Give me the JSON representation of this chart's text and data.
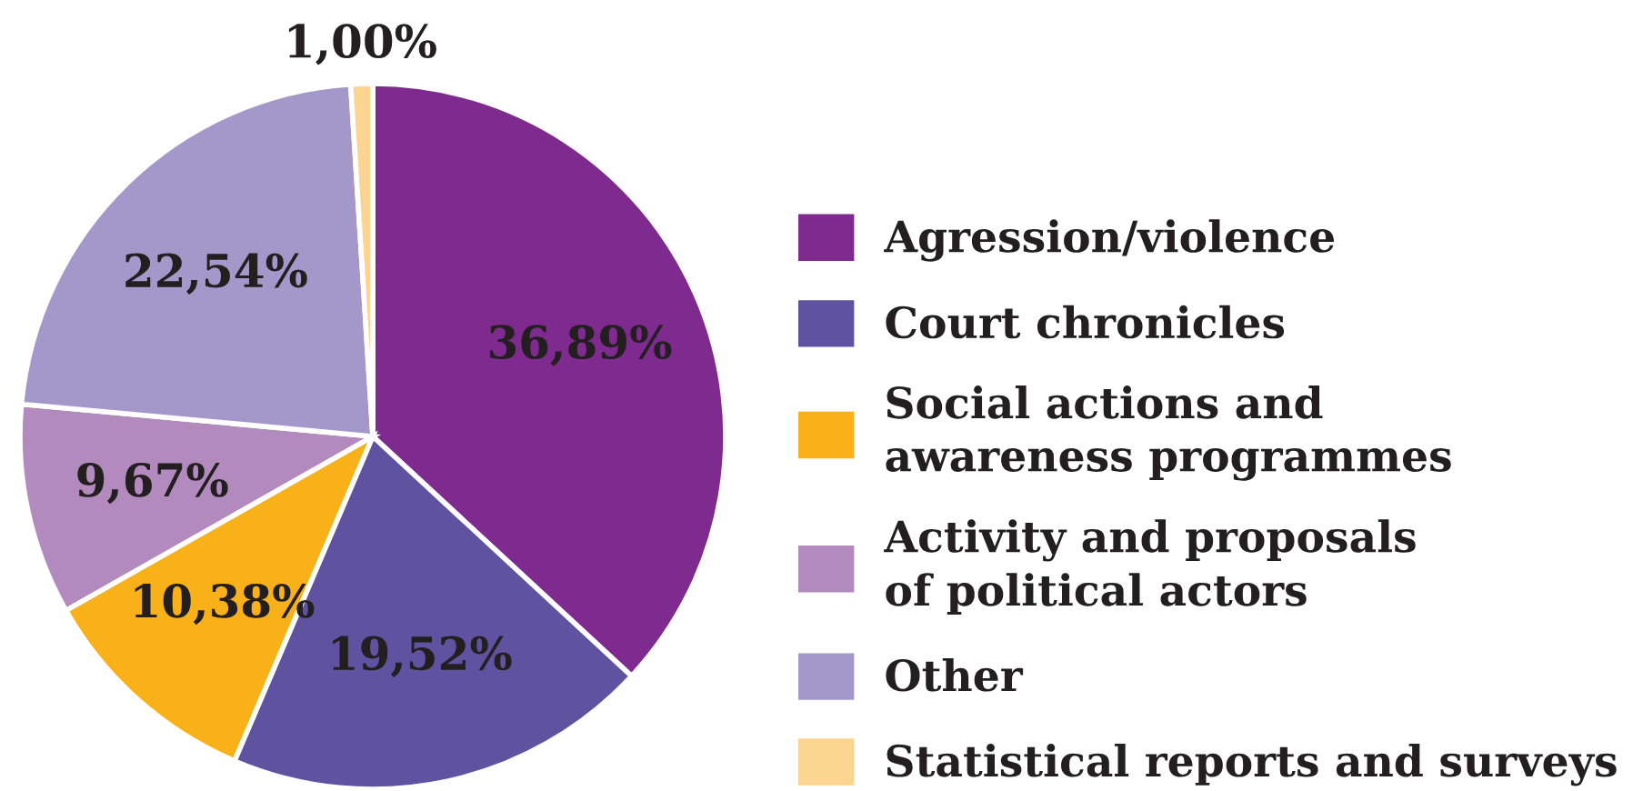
{
  "chart_data": {
    "type": "pie",
    "categories": [
      "Agression/violence",
      "Court chronicles",
      "Social actions and\nawareness programmes",
      "Activity and proposals\nof political actors",
      "Other",
      "Statistical reports and surveys"
    ],
    "values": [
      36.89,
      19.52,
      10.38,
      9.67,
      22.54,
      1.0
    ],
    "value_labels": [
      "36,89%",
      "19,52%",
      "10,38%",
      "9,67%",
      "22,54%",
      "1,00%"
    ],
    "colors": [
      "#7f2a8e",
      "#5f53a1",
      "#f9b119",
      "#b28abd",
      "#a398c9",
      "#fcd491"
    ],
    "legend": "right"
  }
}
